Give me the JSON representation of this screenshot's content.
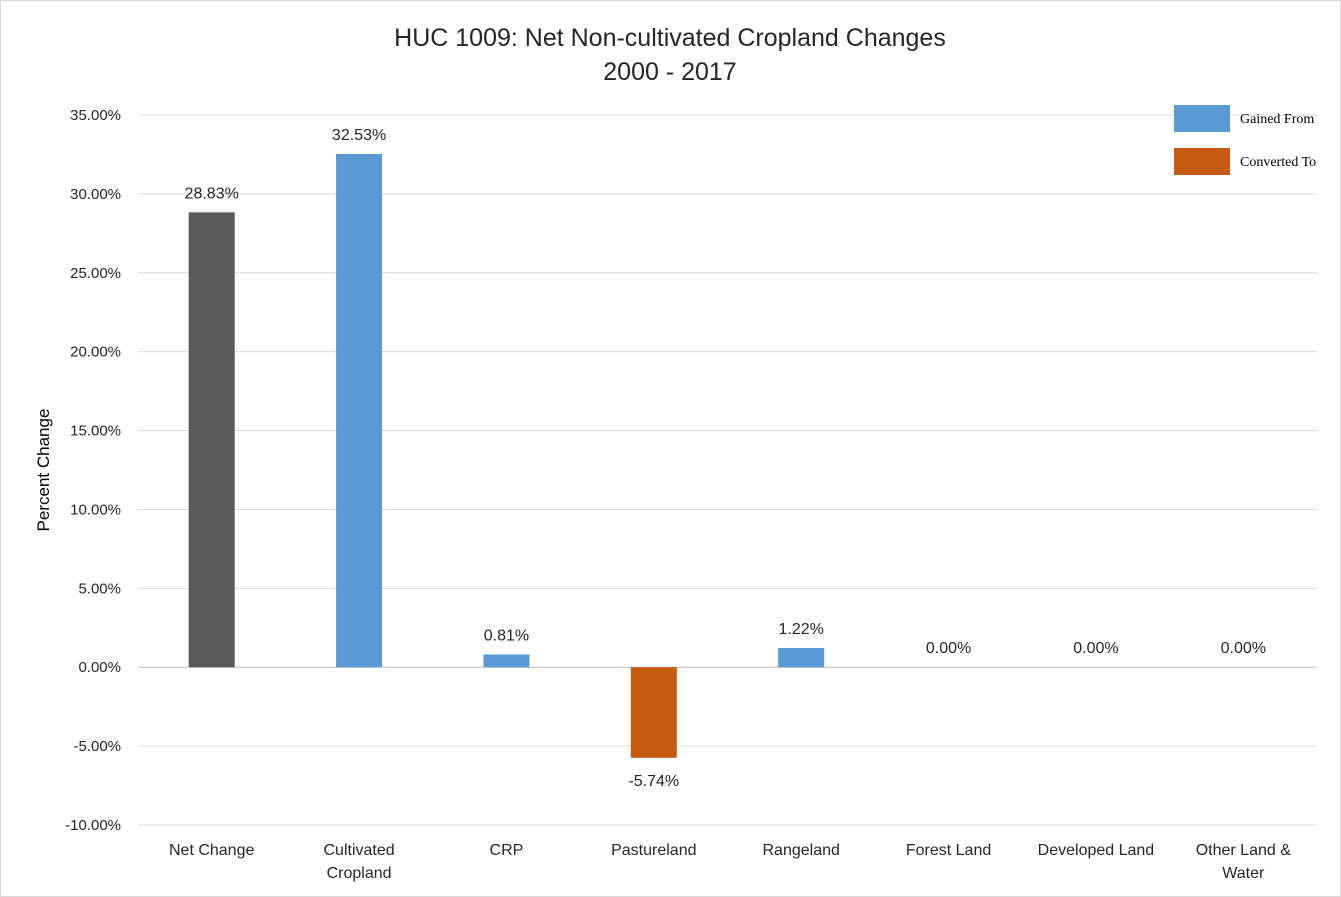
{
  "chart_data": {
    "type": "bar",
    "title": [
      "HUC 1009: Net Non-cultivated Cropland Changes",
      "2000 - 2017"
    ],
    "ylabel": "Percent Change",
    "xlabel": "",
    "ylim": [
      -10,
      35
    ],
    "ytick_step": 5,
    "ytick_labels": [
      "-10.00%",
      "-5.00%",
      "0.00%",
      "5.00%",
      "10.00%",
      "15.00%",
      "20.00%",
      "25.00%",
      "30.00%",
      "35.00%"
    ],
    "grid": true,
    "legend_position": "top-right",
    "legend": [
      {
        "label": "Gained From",
        "color": "#5b9bd5"
      },
      {
        "label": "Converted To",
        "color": "#c55a11"
      }
    ],
    "categories": [
      [
        "Net Change"
      ],
      [
        "Cultivated",
        "Cropland"
      ],
      [
        "CRP"
      ],
      [
        "Pastureland"
      ],
      [
        "Rangeland"
      ],
      [
        "Forest Land"
      ],
      [
        "Developed Land"
      ],
      [
        "Other Land &",
        "Water"
      ]
    ],
    "values": [
      28.83,
      32.53,
      0.81,
      -5.74,
      1.22,
      0.0,
      0.0,
      0.0
    ],
    "value_labels": [
      "28.83%",
      "32.53%",
      "0.81%",
      "-5.74%",
      "1.22%",
      "0.00%",
      "0.00%",
      "0.00%"
    ],
    "bar_colors": [
      "#595959",
      "#5b9bd5",
      "#5b9bd5",
      "#c55a11",
      "#5b9bd5",
      "#5b9bd5",
      "#5b9bd5",
      "#5b9bd5"
    ]
  }
}
